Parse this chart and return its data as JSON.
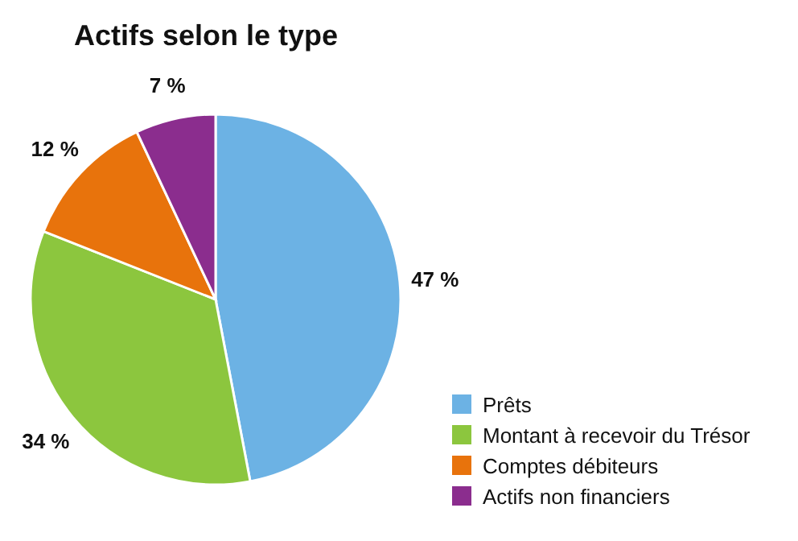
{
  "chart_data": {
    "type": "pie",
    "title": "Actifs selon le type",
    "categories": [
      "Prêts",
      "Montant à recevoir du Trésor",
      "Comptes débiteurs",
      "Actifs non financiers"
    ],
    "values": [
      47,
      34,
      12,
      7
    ],
    "colors": [
      "#6cb2e4",
      "#8cc63e",
      "#e8730c",
      "#8b2d8e"
    ],
    "value_labels": [
      "47 %",
      "34 %",
      "12 %",
      "7 %"
    ],
    "legend": "bottom right"
  }
}
